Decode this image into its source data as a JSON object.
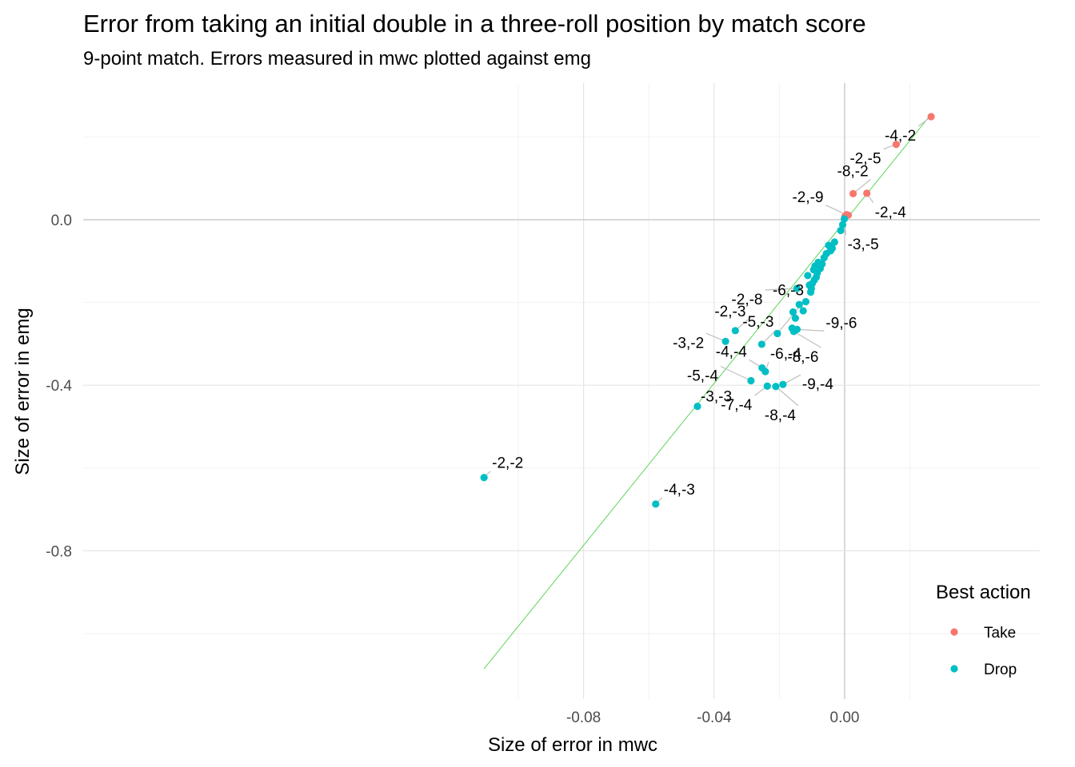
{
  "chart_data": {
    "type": "scatter",
    "title": "Error from taking an initial double in a three-roll position by match score",
    "subtitle": "9-point match. Errors measured in mwc plotted against emg",
    "xlabel": "Size of error in mwc",
    "ylabel": "Size of error in emg",
    "xlim": [
      -0.1105,
      0.0275
    ],
    "ylim": [
      -1.155,
      0.315
    ],
    "x_ticks": [
      {
        "value": -0.08,
        "label": "-0.08"
      },
      {
        "value": -0.04,
        "label": "-0.04"
      },
      {
        "value": 0.0,
        "label": "0.00"
      }
    ],
    "y_ticks": [
      {
        "value": 0.0,
        "label": "0.0"
      },
      {
        "value": -0.4,
        "label": "-0.4"
      },
      {
        "value": -0.8,
        "label": "-0.8"
      }
    ],
    "grid": true,
    "reference_line": {
      "type": "diagonal",
      "color": "#5cd65c",
      "from": [
        -0.1105,
        -1.085
      ],
      "to": [
        0.0265,
        0.255
      ]
    },
    "legend": {
      "title": "Best action",
      "position": "right-bottom",
      "entries": [
        {
          "name": "Take",
          "color": "#f8766d"
        },
        {
          "name": "Drop",
          "color": "#00bfc4"
        }
      ]
    },
    "series": [
      {
        "name": "Take",
        "color": "#f8766d",
        "points": [
          {
            "x": 0.0265,
            "y": 0.249,
            "label": "-4,-2"
          },
          {
            "x": 0.0158,
            "y": 0.182,
            "label": "-2,-5"
          },
          {
            "x": 0.0026,
            "y": 0.063,
            "label": "-8,-2"
          },
          {
            "x": 0.0068,
            "y": 0.064,
            "label": "-2,-4"
          },
          {
            "x": 0.0006,
            "y": 0.012,
            "label": "-2,-9"
          },
          {
            "x": 0.0011,
            "y": 0.011,
            "label": ""
          },
          {
            "x": 0.0001,
            "y": 0.008,
            "label": ""
          }
        ]
      },
      {
        "name": "Drop",
        "color": "#00bfc4",
        "points": [
          {
            "x": -0.1105,
            "y": -0.623,
            "label": "-2,-2"
          },
          {
            "x": -0.0579,
            "y": -0.687,
            "label": "-4,-3"
          },
          {
            "x": -0.0451,
            "y": -0.451,
            "label": "-3,-3"
          },
          {
            "x": -0.0365,
            "y": -0.294,
            "label": "-3,-2"
          },
          {
            "x": -0.0335,
            "y": -0.268,
            "label": "-2,-3"
          },
          {
            "x": -0.0287,
            "y": -0.389,
            "label": "-5,-4"
          },
          {
            "x": -0.0254,
            "y": -0.301,
            "label": "-5,-3"
          },
          {
            "x": -0.0253,
            "y": -0.358,
            "label": "-4,-4"
          },
          {
            "x": -0.0243,
            "y": -0.367,
            "label": "-6,-4"
          },
          {
            "x": -0.0237,
            "y": -0.402,
            "label": "-7,-4"
          },
          {
            "x": -0.0211,
            "y": -0.403,
            "label": "-8,-4"
          },
          {
            "x": -0.0189,
            "y": -0.398,
            "label": "-9,-4"
          },
          {
            "x": -0.0206,
            "y": -0.275,
            "label": "-6,-3"
          },
          {
            "x": -0.0156,
            "y": -0.27,
            "label": "-8,-6"
          },
          {
            "x": -0.0146,
            "y": -0.265,
            "label": "-9,-6"
          },
          {
            "x": -0.0146,
            "y": -0.166,
            "label": "-2,-8"
          },
          {
            "x": -0.0001,
            "y": 0.002,
            "label": "-3,-5"
          },
          {
            "x": -0.0006,
            "y": -0.012,
            "label": ""
          },
          {
            "x": -0.0012,
            "y": -0.026,
            "label": ""
          },
          {
            "x": -0.0031,
            "y": -0.054,
            "label": ""
          },
          {
            "x": -0.0038,
            "y": -0.069,
            "label": ""
          },
          {
            "x": -0.0043,
            "y": -0.075,
            "label": ""
          },
          {
            "x": -0.0049,
            "y": -0.062,
            "label": ""
          },
          {
            "x": -0.0056,
            "y": -0.082,
            "label": ""
          },
          {
            "x": -0.0063,
            "y": -0.092,
            "label": ""
          },
          {
            "x": -0.0069,
            "y": -0.107,
            "label": ""
          },
          {
            "x": -0.0075,
            "y": -0.118,
            "label": ""
          },
          {
            "x": -0.0081,
            "y": -0.103,
            "label": ""
          },
          {
            "x": -0.0084,
            "y": -0.129,
            "label": ""
          },
          {
            "x": -0.0087,
            "y": -0.139,
            "label": ""
          },
          {
            "x": -0.0091,
            "y": -0.112,
            "label": ""
          },
          {
            "x": -0.0093,
            "y": -0.146,
            "label": ""
          },
          {
            "x": -0.0095,
            "y": -0.121,
            "label": ""
          },
          {
            "x": -0.0099,
            "y": -0.154,
            "label": ""
          },
          {
            "x": -0.0102,
            "y": -0.166,
            "label": ""
          },
          {
            "x": -0.0104,
            "y": -0.175,
            "label": ""
          },
          {
            "x": -0.0108,
            "y": -0.158,
            "label": ""
          },
          {
            "x": -0.0113,
            "y": -0.135,
            "label": ""
          },
          {
            "x": -0.0119,
            "y": -0.198,
            "label": ""
          },
          {
            "x": -0.0127,
            "y": -0.22,
            "label": ""
          },
          {
            "x": -0.0139,
            "y": -0.205,
            "label": ""
          },
          {
            "x": -0.0151,
            "y": -0.238,
            "label": ""
          },
          {
            "x": -0.0158,
            "y": -0.223,
            "label": ""
          },
          {
            "x": -0.0161,
            "y": -0.262,
            "label": ""
          }
        ]
      }
    ]
  }
}
